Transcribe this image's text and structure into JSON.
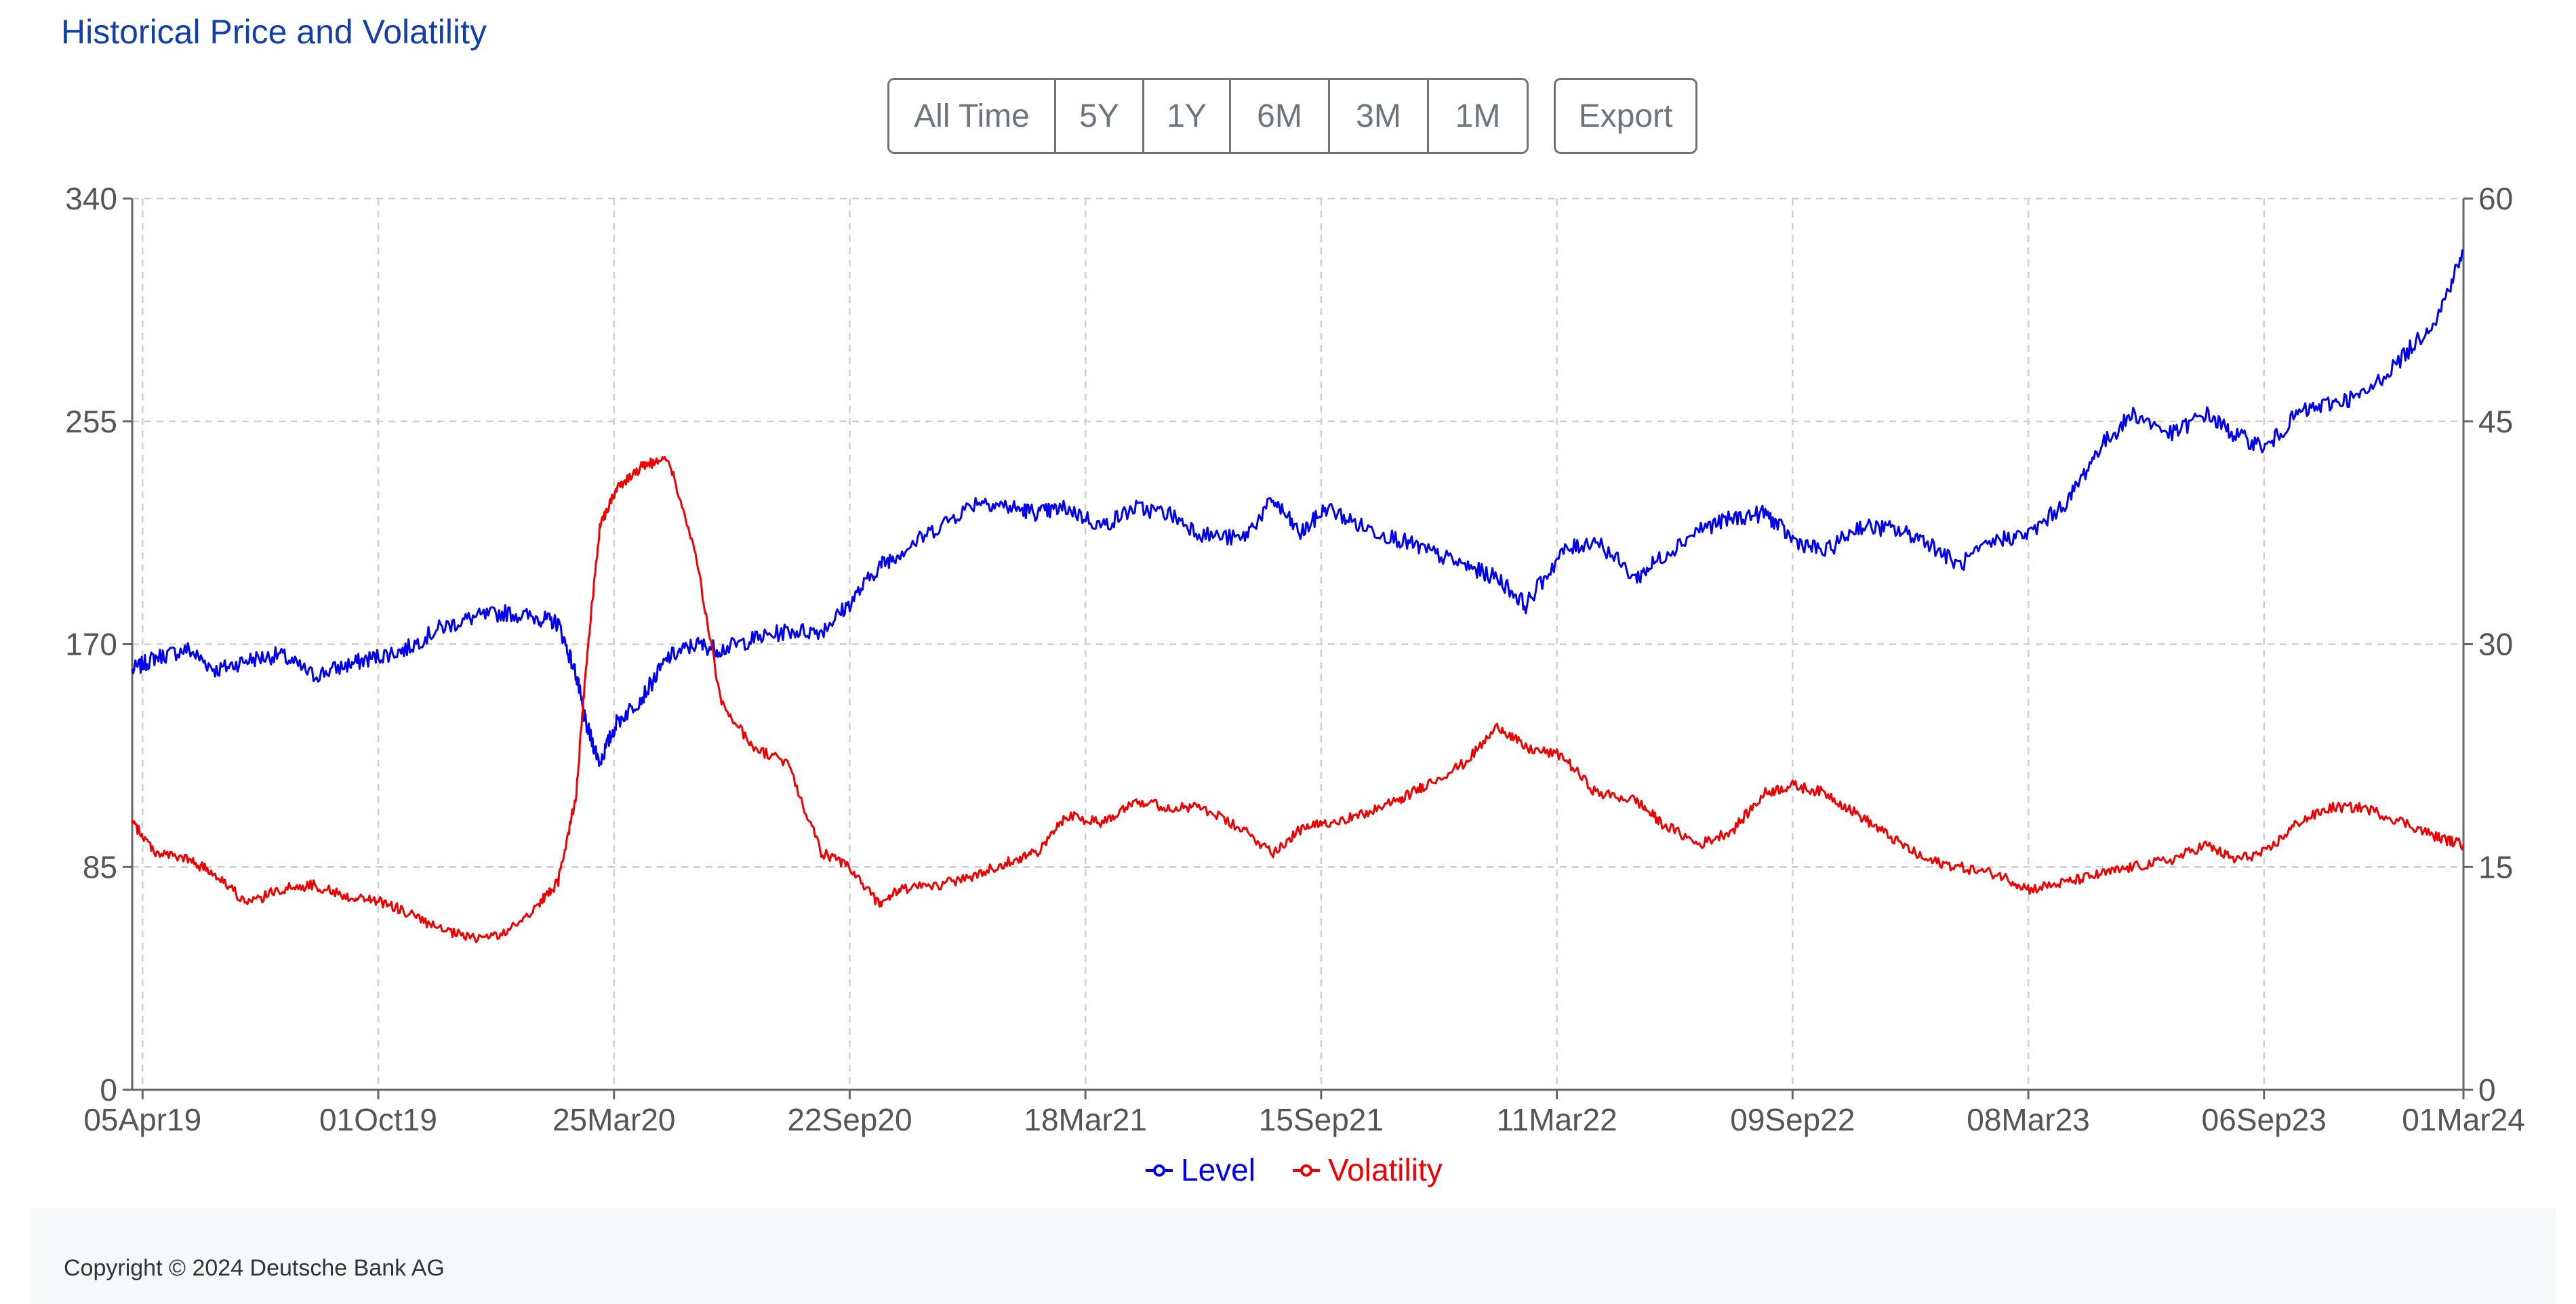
{
  "header": {
    "title": "Historical Price and Volatility"
  },
  "range_buttons": [
    {
      "label": "All Time",
      "active": false
    },
    {
      "label": "5Y",
      "active": true
    },
    {
      "label": "1Y",
      "active": false
    },
    {
      "label": "6M",
      "active": false
    },
    {
      "label": "3M",
      "active": false
    },
    {
      "label": "1M",
      "active": false
    }
  ],
  "export_label": "Export",
  "footer": {
    "copyright": "Copyright © 2024 Deutsche Bank AG"
  },
  "chart_data": {
    "type": "line",
    "title": "",
    "xlabel": "",
    "ylabel": "",
    "x_ticks": [
      "05Apr19",
      "01Oct19",
      "25Mar20",
      "22Sep20",
      "18Mar21",
      "15Sep21",
      "11Mar22",
      "09Sep22",
      "08Mar23",
      "06Sep23",
      "01Mar24"
    ],
    "ylim_left": [
      0,
      340
    ],
    "yticks_left": [
      0,
      85,
      170,
      255,
      340
    ],
    "ylim_right": [
      0,
      60
    ],
    "yticks_right": [
      0,
      15,
      30,
      45,
      60
    ],
    "grid": true,
    "legend_position": "bottom-center",
    "series": [
      {
        "name": "Level",
        "axis": "left",
        "color": "#0000ee",
        "x": [
          "2019-03-28",
          "2019-04-15",
          "2019-05-10",
          "2019-06-01",
          "2019-06-25",
          "2019-07-20",
          "2019-08-15",
          "2019-09-10",
          "2019-10-01",
          "2019-10-25",
          "2019-11-20",
          "2019-12-15",
          "2020-01-10",
          "2020-02-05",
          "2020-02-20",
          "2020-03-05",
          "2020-03-12",
          "2020-03-23",
          "2020-04-05",
          "2020-04-25",
          "2020-05-15",
          "2020-06-05",
          "2020-06-25",
          "2020-07-20",
          "2020-08-15",
          "2020-09-10",
          "2020-10-01",
          "2020-10-25",
          "2020-11-10",
          "2020-12-10",
          "2021-01-10",
          "2021-02-05",
          "2021-02-25",
          "2021-03-18",
          "2021-04-15",
          "2021-05-10",
          "2021-06-05",
          "2021-07-01",
          "2021-08-01",
          "2021-08-25",
          "2021-09-15",
          "2021-10-05",
          "2021-11-01",
          "2021-11-30",
          "2021-12-20",
          "2022-01-20",
          "2022-02-15",
          "2022-03-08",
          "2022-04-05",
          "2022-05-01",
          "2022-06-01",
          "2022-06-20",
          "2022-07-20",
          "2022-08-15",
          "2022-09-09",
          "2022-09-30",
          "2022-10-25",
          "2022-11-20",
          "2022-12-15",
          "2023-01-10",
          "2023-02-05",
          "2023-03-08",
          "2023-04-01",
          "2023-05-01",
          "2023-05-25",
          "2023-06-20",
          "2023-07-20",
          "2023-08-15",
          "2023-09-06",
          "2023-10-01",
          "2023-10-25",
          "2023-11-20",
          "2023-12-15",
          "2024-01-15",
          "2024-02-10",
          "2024-03-01"
        ],
        "values": [
          160,
          165,
          168,
          160,
          164,
          166,
          158,
          162,
          165,
          168,
          176,
          180,
          182,
          180,
          178,
          158,
          140,
          125,
          140,
          150,
          165,
          170,
          168,
          172,
          175,
          175,
          185,
          200,
          205,
          215,
          225,
          222,
          220,
          222,
          215,
          222,
          220,
          212,
          210,
          225,
          212,
          222,
          215,
          210,
          206,
          200,
          195,
          185,
          205,
          210,
          195,
          203,
          214,
          218,
          220,
          210,
          205,
          215,
          214,
          210,
          200,
          210,
          212,
          225,
          245,
          258,
          250,
          258,
          250,
          245,
          258,
          262,
          265,
          280,
          295,
          320
        ]
      },
      {
        "name": "Volatility",
        "axis": "right",
        "color": "#ee0000",
        "x": [
          "2019-03-28",
          "2019-04-15",
          "2019-05-10",
          "2019-06-01",
          "2019-06-25",
          "2019-07-20",
          "2019-08-15",
          "2019-09-10",
          "2019-10-01",
          "2019-10-25",
          "2019-11-20",
          "2019-12-15",
          "2020-01-10",
          "2020-02-05",
          "2020-02-20",
          "2020-03-05",
          "2020-03-12",
          "2020-03-23",
          "2020-04-05",
          "2020-04-25",
          "2020-05-15",
          "2020-06-05",
          "2020-06-25",
          "2020-07-20",
          "2020-08-15",
          "2020-09-10",
          "2020-10-01",
          "2020-10-25",
          "2020-11-10",
          "2020-12-10",
          "2021-01-10",
          "2021-02-05",
          "2021-02-25",
          "2021-03-18",
          "2021-04-15",
          "2021-05-10",
          "2021-06-05",
          "2021-07-01",
          "2021-08-01",
          "2021-08-25",
          "2021-09-15",
          "2021-10-05",
          "2021-11-01",
          "2021-11-30",
          "2021-12-20",
          "2022-01-20",
          "2022-02-15",
          "2022-03-08",
          "2022-04-05",
          "2022-05-01",
          "2022-06-01",
          "2022-06-20",
          "2022-07-20",
          "2022-08-15",
          "2022-09-09",
          "2022-09-30",
          "2022-10-25",
          "2022-11-20",
          "2022-12-15",
          "2023-01-10",
          "2023-02-05",
          "2023-03-08",
          "2023-04-01",
          "2023-05-01",
          "2023-05-25",
          "2023-06-20",
          "2023-07-20",
          "2023-08-15",
          "2023-09-06",
          "2023-10-01",
          "2023-10-25",
          "2023-11-20",
          "2023-12-15",
          "2024-01-15",
          "2024-02-10",
          "2024-03-01"
        ],
        "values": [
          18,
          16,
          15.5,
          14.5,
          12.5,
          13.5,
          13.8,
          13,
          12.8,
          12,
          10.8,
          10.2,
          10.5,
          12.5,
          14,
          20,
          28,
          38,
          40.5,
          42,
          42.5,
          36,
          26,
          23,
          22,
          16,
          15,
          12.5,
          13.5,
          13.8,
          14.5,
          15.5,
          16,
          18.5,
          18,
          19.5,
          19,
          19,
          17.5,
          16,
          17.5,
          18,
          18.5,
          19.5,
          20.5,
          22,
          24.5,
          23,
          22.5,
          20,
          19.5,
          18,
          16.5,
          17.5,
          20,
          20.5,
          20,
          18.5,
          17,
          15.5,
          15,
          14.5,
          13.5,
          14,
          14.5,
          15,
          15.5,
          16.5,
          15.5,
          16,
          18,
          19,
          19,
          18,
          17,
          16.5
        ]
      }
    ]
  }
}
